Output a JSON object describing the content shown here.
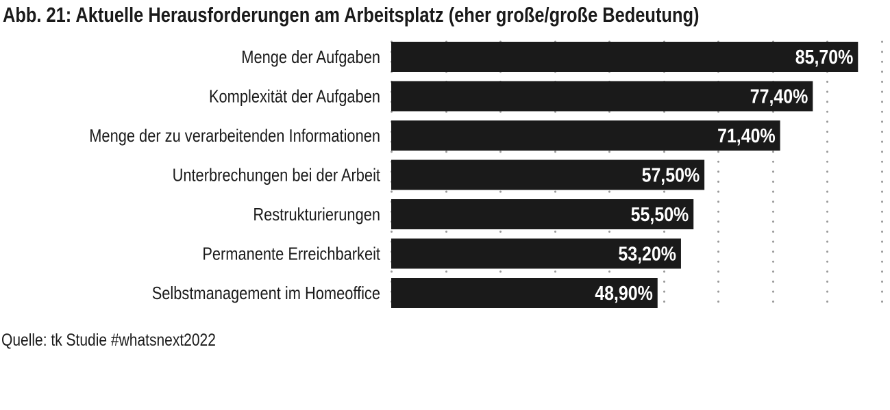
{
  "page": {
    "title": "Abb. 21: Aktuelle Herausforderungen am Arbeitsplatz (eher große/große Bedeutung)",
    "source": "Quelle: tk Studie #whatsnext2022"
  },
  "colors": {
    "bar": "#1a1a1a",
    "bar_label": "#ffffff",
    "text": "#1a1a1a",
    "grid": "#9a9a9a",
    "background": "#ffffff"
  },
  "chart_data": {
    "type": "bar",
    "orientation": "horizontal",
    "title": "Abb. 21: Aktuelle Herausforderungen am Arbeitsplatz (eher große/große Bedeutung)",
    "categories": [
      "Menge der Aufgaben",
      "Komplexität der Aufgaben",
      "Menge der zu verarbeitenden Informationen",
      "Unterbrechungen bei der Arbeit",
      "Restrukturierungen",
      "Permanente Erreichbarkeit",
      "Selbstmanagement im Homeoffice"
    ],
    "values": [
      85.7,
      77.4,
      71.4,
      57.5,
      55.5,
      53.2,
      48.9
    ],
    "value_labels": [
      "85,70%",
      "77,40%",
      "71,40%",
      "57,50%",
      "55,50%",
      "53,20%",
      "48,90%"
    ],
    "xlim": [
      0,
      90
    ],
    "grid_step": 10,
    "grid": true,
    "grid_style": "dotted vertical",
    "xlabel": "",
    "ylabel": "",
    "legend": "none"
  }
}
